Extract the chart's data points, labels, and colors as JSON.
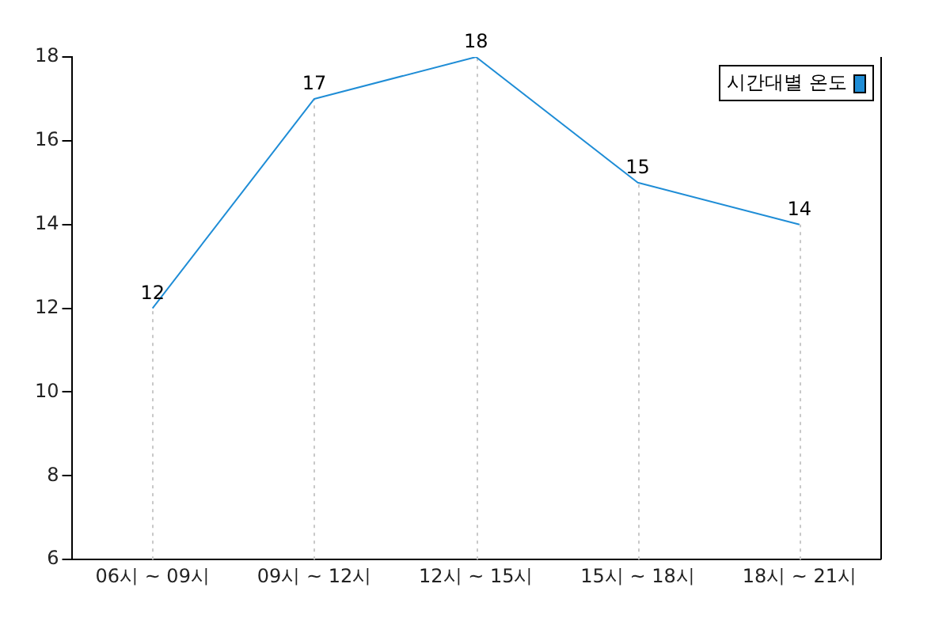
{
  "chart_data": {
    "type": "line",
    "categories": [
      "06시 ~ 09시",
      "09시 ~ 12시",
      "12시 ~ 15시",
      "15시 ~ 18시",
      "18시 ~ 21시"
    ],
    "series": [
      {
        "name": "시간대별 온도",
        "color": "#1f8dd6",
        "values": [
          12,
          17,
          18,
          15,
          14
        ]
      }
    ],
    "ylim": [
      6,
      18
    ],
    "yticks": [
      6,
      8,
      10,
      12,
      14,
      16,
      18
    ],
    "data_labels": true,
    "grid": "x",
    "legend": "top right",
    "marker": "none",
    "line_style": "solid"
  }
}
